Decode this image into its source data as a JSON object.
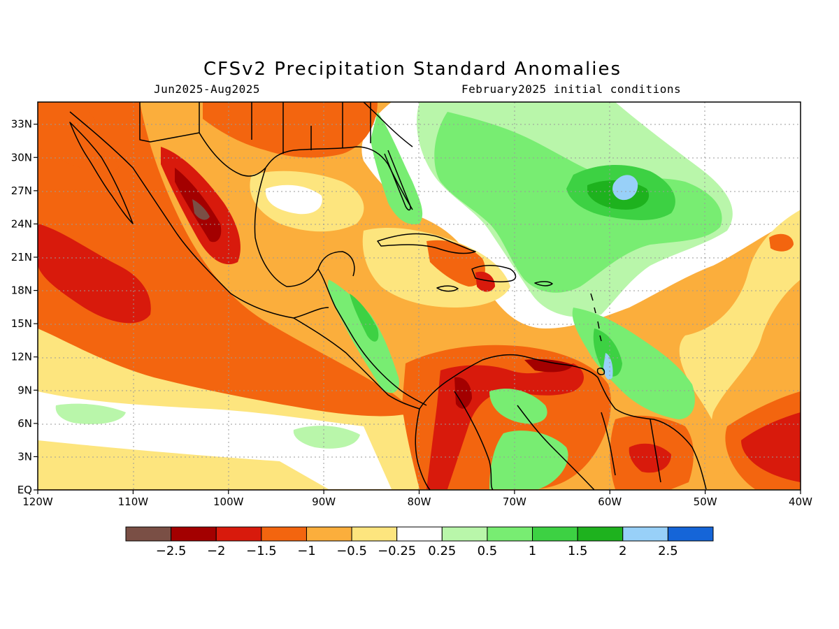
{
  "header": {
    "title": "CFSv2 Precipitation Standard Anomalies",
    "period": "Jun2025-Aug2025",
    "init": "February2025 initial conditions"
  },
  "map": {
    "lon_labels": [
      "120W",
      "110W",
      "100W",
      "90W",
      "80W",
      "70W",
      "60W",
      "50W",
      "40W"
    ],
    "lat_labels": [
      "EQ",
      "3N",
      "6N",
      "9N",
      "12N",
      "15N",
      "18N",
      "21N",
      "24N",
      "27N",
      "30N",
      "33N"
    ],
    "lon_range": [
      -120,
      -40
    ],
    "lat_range": [
      0,
      35
    ],
    "grid": "dotted"
  },
  "legend": {
    "colors": [
      "#7a4f45",
      "#a30000",
      "#d81a0c",
      "#f3650f",
      "#fbae3c",
      "#fde57e",
      "#ffffff",
      "#b9f6aa",
      "#78ed72",
      "#3dd143",
      "#1eb21e",
      "#98d0f8",
      "#1565d8"
    ],
    "labels": [
      "-2.5",
      "-2",
      "-1.5",
      "-1",
      "-0.5",
      "-0.25",
      "0.25",
      "0.5",
      "1",
      "1.5",
      "2",
      "2.5"
    ]
  },
  "colors": {
    "ocean_base": "#fde57e",
    "coast": "#000000"
  }
}
